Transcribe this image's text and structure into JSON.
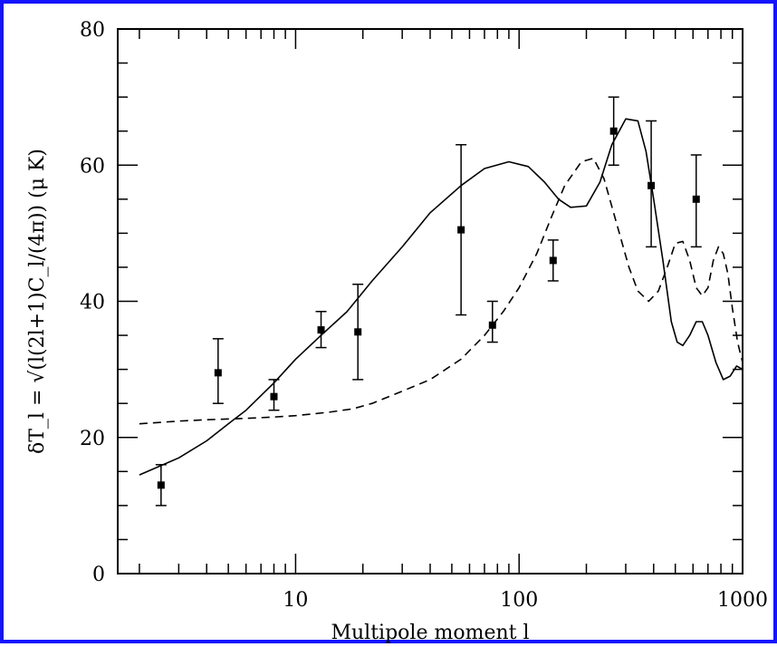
{
  "chart_data": {
    "type": "line",
    "x_scale": "log",
    "xlim": [
      1.6,
      1000
    ],
    "ylim": [
      0,
      80
    ],
    "xlabel": "Multipole moment l",
    "ylabel": "δT_l = √(l(2l+1)C_l/(4π)) (μ K)",
    "x_ticks": [
      {
        "value": 10,
        "label": "10"
      },
      {
        "value": 100,
        "label": "100"
      },
      {
        "value": 1000,
        "label": "1000"
      }
    ],
    "y_ticks": [
      {
        "value": 0,
        "label": "0"
      },
      {
        "value": 20,
        "label": "20"
      },
      {
        "value": 40,
        "label": "40"
      },
      {
        "value": 60,
        "label": "60"
      },
      {
        "value": 80,
        "label": "80"
      }
    ],
    "grid": false,
    "series": [
      {
        "style": "solid",
        "points": [
          [
            2,
            14.5
          ],
          [
            3,
            17
          ],
          [
            4,
            19.5
          ],
          [
            5,
            22
          ],
          [
            6,
            24
          ],
          [
            8,
            28
          ],
          [
            10,
            31.5
          ],
          [
            13,
            35
          ],
          [
            17,
            38.5
          ],
          [
            22,
            43
          ],
          [
            30,
            48
          ],
          [
            40,
            53
          ],
          [
            55,
            57
          ],
          [
            70,
            59.5
          ],
          [
            90,
            60.5
          ],
          [
            110,
            59.8
          ],
          [
            130,
            57.5
          ],
          [
            150,
            55
          ],
          [
            170,
            53.8
          ],
          [
            200,
            54
          ],
          [
            230,
            57.5
          ],
          [
            260,
            63
          ],
          [
            300,
            66.8
          ],
          [
            340,
            66.5
          ],
          [
            370,
            62
          ],
          [
            400,
            55
          ],
          [
            440,
            46
          ],
          [
            480,
            37
          ],
          [
            510,
            34
          ],
          [
            540,
            33.5
          ],
          [
            580,
            35
          ],
          [
            620,
            37
          ],
          [
            660,
            37
          ],
          [
            700,
            35
          ],
          [
            760,
            31
          ],
          [
            820,
            28.5
          ],
          [
            880,
            29
          ],
          [
            940,
            30.5
          ],
          [
            1000,
            30
          ]
        ]
      },
      {
        "style": "dashed",
        "points": [
          [
            2,
            22
          ],
          [
            3,
            22.4
          ],
          [
            4,
            22.6
          ],
          [
            6,
            22.8
          ],
          [
            8,
            23
          ],
          [
            10,
            23.2
          ],
          [
            14,
            23.7
          ],
          [
            18,
            24.2
          ],
          [
            22,
            25
          ],
          [
            30,
            26.8
          ],
          [
            40,
            28.5
          ],
          [
            55,
            31.5
          ],
          [
            70,
            35
          ],
          [
            85,
            38.5
          ],
          [
            100,
            42
          ],
          [
            120,
            47
          ],
          [
            140,
            52.5
          ],
          [
            160,
            57
          ],
          [
            190,
            60.5
          ],
          [
            215,
            61
          ],
          [
            240,
            58
          ],
          [
            270,
            52
          ],
          [
            310,
            45
          ],
          [
            340,
            41.5
          ],
          [
            380,
            40
          ],
          [
            420,
            41.5
          ],
          [
            460,
            45
          ],
          [
            500,
            48.5
          ],
          [
            540,
            48.8
          ],
          [
            580,
            46
          ],
          [
            620,
            42
          ],
          [
            660,
            40.8
          ],
          [
            700,
            42
          ],
          [
            740,
            46
          ],
          [
            780,
            48
          ],
          [
            820,
            47
          ],
          [
            860,
            44
          ],
          [
            900,
            39
          ],
          [
            950,
            34
          ],
          [
            1000,
            31
          ]
        ]
      }
    ],
    "data_points": [
      {
        "x": 2.5,
        "y": 13,
        "low": 10,
        "high": 16
      },
      {
        "x": 4.5,
        "y": 29.5,
        "low": 25,
        "high": 34.5
      },
      {
        "x": 8,
        "y": 26,
        "low": 24,
        "high": 28.5
      },
      {
        "x": 13,
        "y": 35.8,
        "low": 33.2,
        "high": 38.5
      },
      {
        "x": 19,
        "y": 35.5,
        "low": 28.5,
        "high": 42.5
      },
      {
        "x": 55,
        "y": 50.5,
        "low": 38,
        "high": 63
      },
      {
        "x": 76,
        "y": 36.5,
        "low": 34,
        "high": 40
      },
      {
        "x": 142,
        "y": 46,
        "low": 43,
        "high": 49
      },
      {
        "x": 265,
        "y": 65,
        "low": 60,
        "high": 70
      },
      {
        "x": 390,
        "y": 57,
        "low": 48,
        "high": 66.5
      },
      {
        "x": 620,
        "y": 55,
        "low": 48,
        "high": 61.5
      }
    ]
  }
}
